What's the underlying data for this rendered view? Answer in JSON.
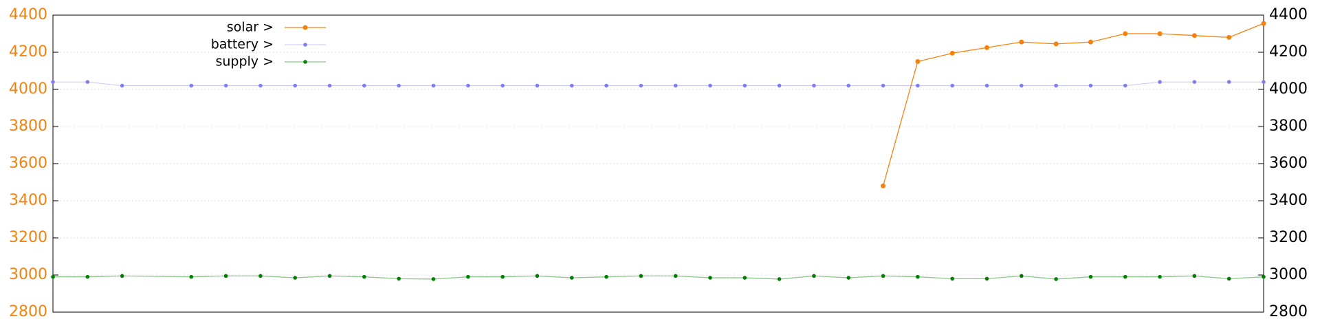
{
  "chart_data": {
    "type": "line",
    "x": [
      0,
      1,
      2,
      4,
      5,
      6,
      7,
      8,
      9,
      10,
      11,
      12,
      13,
      14,
      15,
      16,
      17,
      18,
      19,
      20,
      21,
      22,
      23,
      24,
      25,
      26,
      27,
      28,
      29,
      30,
      31,
      32,
      33,
      34,
      35
    ],
    "xlim": [
      0,
      35
    ],
    "ylim": [
      2800,
      4400
    ],
    "yticks": [
      2800,
      3000,
      3200,
      3400,
      3600,
      3800,
      4000,
      4200,
      4400
    ],
    "y2lim": [
      2800,
      4400
    ],
    "y2ticks": [
      2800,
      3000,
      3200,
      3400,
      3600,
      3800,
      4000,
      4200,
      4400
    ],
    "grid": true,
    "legend": "top-left",
    "series": [
      {
        "name": "solar >",
        "color": "#f5820f",
        "values": [
          null,
          null,
          null,
          null,
          null,
          null,
          null,
          null,
          null,
          null,
          null,
          null,
          null,
          null,
          null,
          null,
          null,
          null,
          null,
          null,
          null,
          null,
          null,
          3480,
          4150,
          4195,
          4225,
          4255,
          4245,
          4255,
          4300,
          4300,
          4290,
          4280,
          4355
        ]
      },
      {
        "name": "battery >",
        "color": "#8080f0",
        "values": [
          4040,
          4040,
          4020,
          4020,
          4020,
          4020,
          4020,
          4020,
          4020,
          4020,
          4020,
          4020,
          4020,
          4020,
          4020,
          4020,
          4020,
          4020,
          4020,
          4020,
          4020,
          4020,
          4020,
          4020,
          4020,
          4020,
          4020,
          4020,
          4020,
          4020,
          4020,
          4040,
          4040,
          4040,
          4040
        ]
      },
      {
        "name": "supply >",
        "color": "#008000",
        "values": [
          2990,
          2990,
          2995,
          2990,
          2995,
          2995,
          2985,
          2995,
          2990,
          2980,
          2978,
          2990,
          2990,
          2995,
          2985,
          2990,
          2995,
          2995,
          2985,
          2985,
          2978,
          2995,
          2985,
          2995,
          2990,
          2980,
          2980,
          2995,
          2978,
          2990,
          2990,
          2990,
          2995,
          2980,
          2990
        ]
      }
    ]
  }
}
